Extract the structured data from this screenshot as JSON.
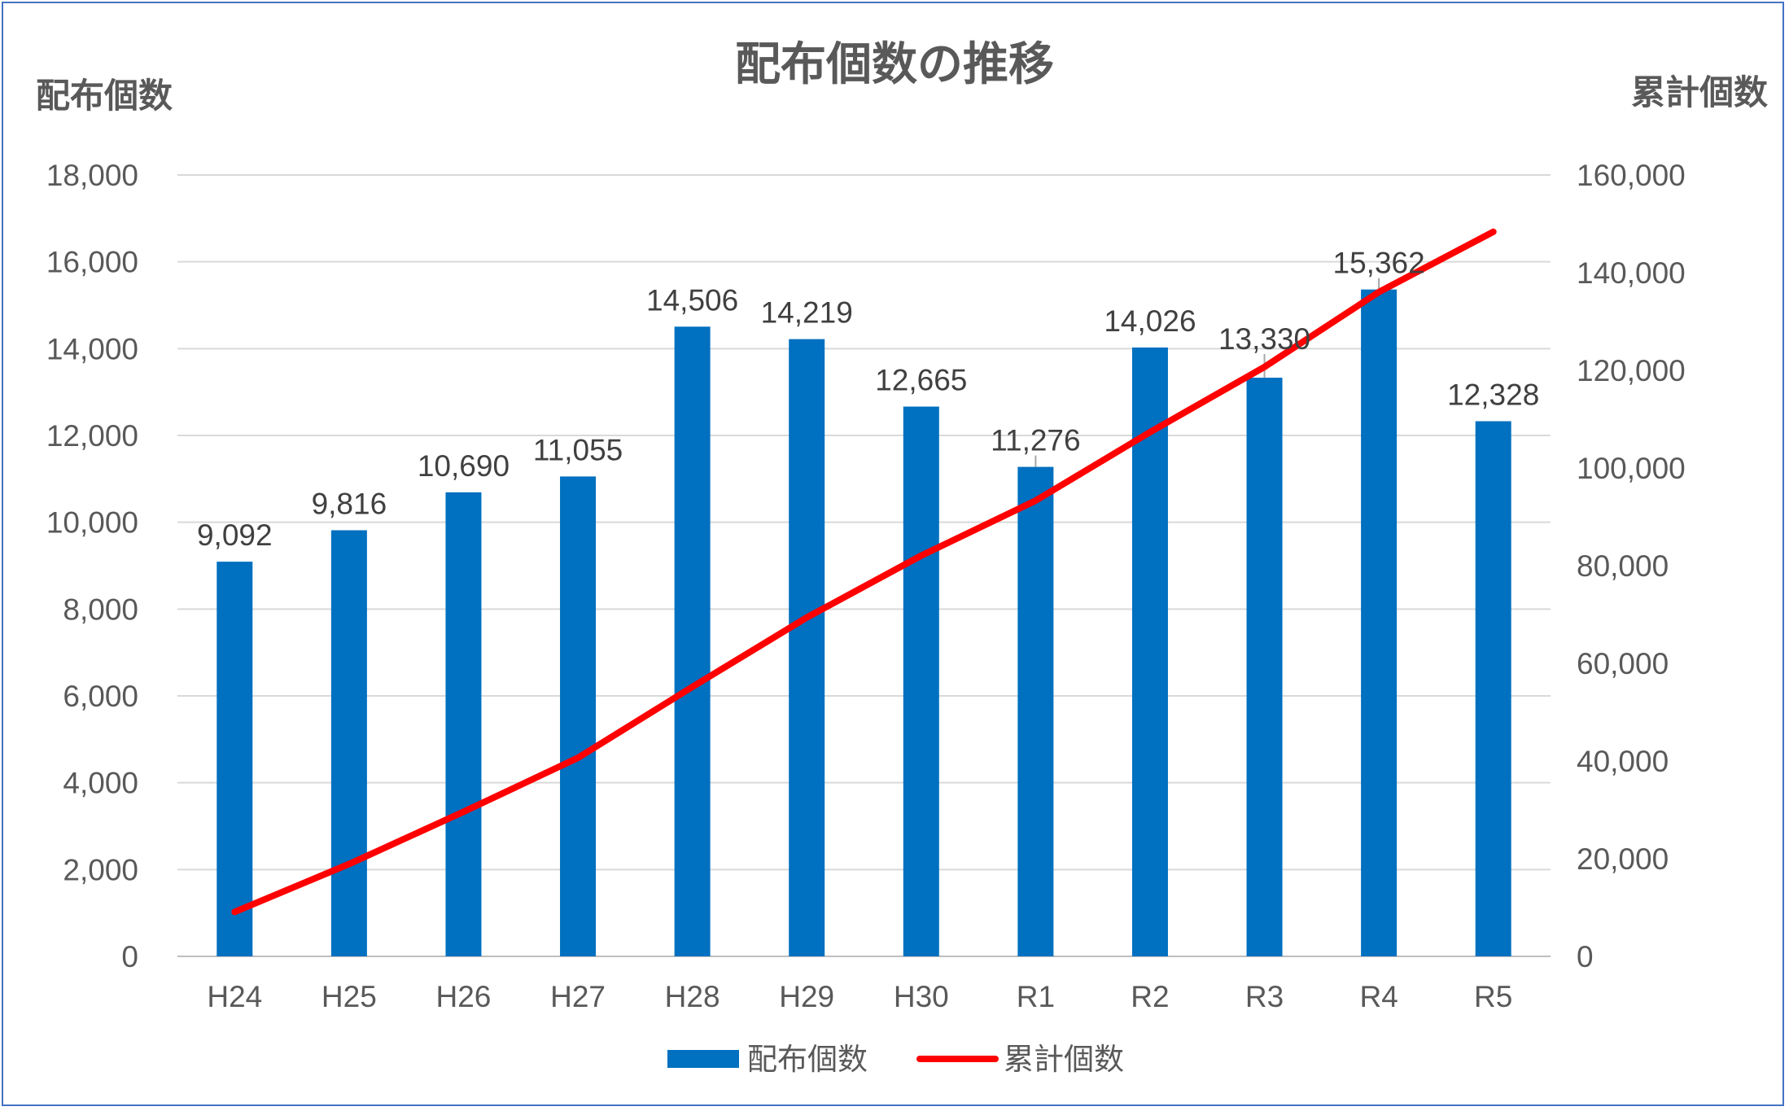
{
  "chart_data": {
    "type": "bar",
    "title": "配布個数の推移",
    "ylabel": "配布個数",
    "y2label": "累計個数",
    "categories": [
      "H24",
      "H25",
      "H26",
      "H27",
      "H28",
      "H29",
      "H30",
      "R1",
      "R2",
      "R3",
      "R4",
      "R5"
    ],
    "series": [
      {
        "name": "配布個数",
        "type": "bar",
        "axis": "left",
        "color": "#0070c0",
        "values": [
          9092,
          9816,
          10690,
          11055,
          14506,
          14219,
          12665,
          11276,
          14026,
          13330,
          15362,
          12328
        ],
        "labels": [
          "9,092",
          "9,816",
          "10,690",
          "11,055",
          "14,506",
          "14,219",
          "12,665",
          "11,276",
          "14,026",
          "13,330",
          "15,362",
          "12,328"
        ]
      },
      {
        "name": "累計個数",
        "type": "line",
        "axis": "right",
        "color": "#ff0000",
        "values": [
          9092,
          18908,
          29598,
          40653,
          55159,
          69378,
          82043,
          93319,
          107345,
          120675,
          136037,
          148365
        ]
      }
    ],
    "ylim": [
      0,
      18000
    ],
    "y2lim": [
      0,
      160000
    ],
    "yticks": [
      "0",
      "2,000",
      "4,000",
      "6,000",
      "8,000",
      "10,000",
      "12,000",
      "14,000",
      "16,000",
      "18,000"
    ],
    "y2ticks": [
      "0",
      "20,000",
      "40,000",
      "60,000",
      "80,000",
      "100,000",
      "120,000",
      "140,000",
      "160,000"
    ],
    "grid": true,
    "legend": "bottom"
  }
}
